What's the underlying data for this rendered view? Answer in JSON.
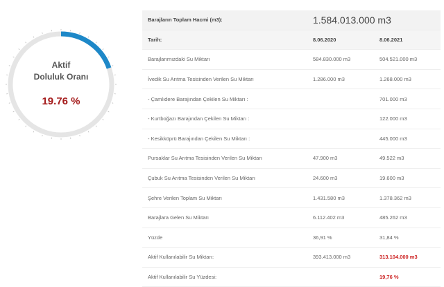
{
  "gauge": {
    "line1": "Aktif",
    "line2": "Doluluk Oranı",
    "value_text": "19.76 %",
    "percent": 19.76,
    "track_color": "#e5e5e5",
    "fill_color": "#1e88c8"
  },
  "table": {
    "header": {
      "label": "Barajların Toplam Hacmi (m3):",
      "value": "1.584.013.000 m3"
    },
    "date_row": {
      "label": "Tarih:",
      "col1": "8.06.2020",
      "col2": "8.06.2021"
    },
    "rows": [
      {
        "label": "Barajlarımızdaki Su Miktarı",
        "v1": "584.830.000 m3",
        "v2": "504.521.000 m3"
      },
      {
        "label": "İvedik Su Arıtma Tesisinden Verilen Su Miktarı",
        "v1": "1.286.000 m3",
        "v2": "1.268.000 m3"
      },
      {
        "label": "- Çamlıdere Barajından Çekilen Su Miktarı :",
        "v1": "",
        "v2": "701.000 m3"
      },
      {
        "label": "- Kurtboğazı Barajından Çekilen Su Miktarı :",
        "v1": "",
        "v2": "122.000 m3"
      },
      {
        "label": "- Kesikköprü Barajından Çekilen Su Miktarı :",
        "v1": "",
        "v2": "445.000 m3"
      },
      {
        "label": "Pursaklar Su Arıtma Tesisinden Verilen Su Miktarı",
        "v1": "47.900 m3",
        "v2": "49.522 m3"
      },
      {
        "label": "Çubuk Su Arıtma Tesisinden Verilen Su Miktarı",
        "v1": "24.600 m3",
        "v2": "19.600 m3"
      },
      {
        "label": "Şehre Verilen Toplam Su Miktarı",
        "v1": "1.431.580 m3",
        "v2": "1.378.362 m3"
      },
      {
        "label": "Barajlara Gelen Su Miktarı",
        "v1": "6.112.402 m3",
        "v2": "485.262 m3"
      },
      {
        "label": "Yüzde",
        "v1": "36,91 %",
        "v2": "31,84 %"
      },
      {
        "label": "Aktif Kullanılabilir Su Miktarı:",
        "v1": "393.413.000 m3",
        "v2": "313.104.000 m3"
      },
      {
        "label": "Aktif Kullanılabilir Su Yüzdesi:",
        "v1": "",
        "v2": "19,76 %"
      }
    ]
  }
}
